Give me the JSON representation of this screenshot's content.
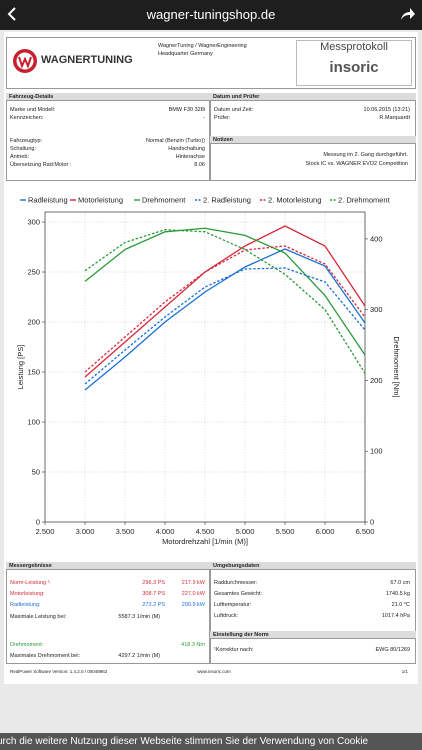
{
  "browser": {
    "url": "wagner-tuningshop.de"
  },
  "header": {
    "logo": "WAGNERTUNING",
    "address": [
      "WagnerTuning / WagnerEngineering",
      "Headquarter Germany"
    ],
    "protocol": "Messprotokoll",
    "brand": "insoric"
  },
  "vehicle": {
    "title": "Fahrzeug-Details",
    "rows": [
      [
        "Marke und Modell:",
        "BMW F30 328i"
      ],
      [
        "Kennzeichen:",
        "-"
      ],
      [
        "Fahrzeugtyp:",
        "Normal (Benzin (Turbo))"
      ],
      [
        "Schaltung:",
        "Handschaltung"
      ],
      [
        "Antrieb:",
        "Hinterachse"
      ],
      [
        "Übersetzung Rad:Motor :",
        "8.06"
      ]
    ]
  },
  "inspection": {
    "title": "Datum und Prüfer",
    "rows": [
      [
        "Datum und Zeit:",
        "10.06.2015 (13:21)"
      ],
      [
        "Prüfer:",
        "R.Marquardt"
      ]
    ]
  },
  "notes": {
    "title": "Notizen",
    "lines": [
      "Messung im 2. Gang durchgeführt.",
      "Stock IC vs. WAGNER EVO2 Competition"
    ]
  },
  "chart_data": {
    "type": "line",
    "x_label": "Motordrehzahl [1/min (M)]",
    "y_label": "Leistung [PS]",
    "y2_label": "Drehmoment [Nm]",
    "x": [
      3000,
      3500,
      4000,
      4500,
      5000,
      5500,
      6000,
      6500
    ],
    "series": [
      {
        "name": "Radleistung",
        "color": "#1a6fd6",
        "dashed": false,
        "values": [
          132,
          165,
          200,
          230,
          255,
          273,
          256,
          199
        ]
      },
      {
        "name": "Motorleistung",
        "color": "#d6283a",
        "dashed": false,
        "values": [
          145,
          180,
          215,
          250,
          276,
          296,
          276,
          216
        ]
      },
      {
        "name": "Drehmoment",
        "color": "#2a9a3a",
        "dashed": false,
        "axis": "y2",
        "values": [
          340,
          385,
          410,
          415,
          405,
          380,
          320,
          236
        ]
      },
      {
        "name": "2. Radleistung",
        "color": "#1a6fd6",
        "dashed": true,
        "values": [
          138,
          172,
          205,
          235,
          253,
          254,
          240,
          192
        ]
      },
      {
        "name": "2. Motorleistung",
        "color": "#d6283a",
        "dashed": true,
        "values": [
          150,
          185,
          220,
          250,
          272,
          276,
          258,
          205
        ]
      },
      {
        "name": "2. Drehmoment",
        "color": "#2a9a3a",
        "dashed": true,
        "axis": "y2",
        "values": [
          355,
          395,
          413,
          410,
          385,
          350,
          300,
          210
        ]
      }
    ],
    "xlim": [
      2500,
      6500
    ],
    "xticks": [
      {
        "value": 2500,
        "label": "2.500"
      },
      {
        "value": 3000,
        "label": "3.000"
      },
      {
        "value": 3500,
        "label": "3.500"
      },
      {
        "value": 4000,
        "label": "4.000"
      },
      {
        "value": 4500,
        "label": "4.500"
      },
      {
        "value": 5000,
        "label": "5.000"
      },
      {
        "value": 5500,
        "label": "5.500"
      },
      {
        "value": 6000,
        "label": "6.000"
      },
      {
        "value": 6500,
        "label": "6.500"
      }
    ],
    "ylim": [
      0,
      310
    ],
    "yticks": [
      0,
      50,
      100,
      150,
      200,
      250,
      300
    ],
    "y2lim": [
      0,
      438
    ],
    "y2ticks": [
      0,
      100,
      200,
      300,
      400
    ],
    "grid": true,
    "legend": "top"
  },
  "results": {
    "title": "Messergebnisse",
    "rows": [
      [
        "Norm-Leistung ¹:",
        "296.3 PS",
        "217.9 kW"
      ],
      [
        "Motorleistung:",
        "308.7 PS",
        "227.0 kW"
      ],
      [
        "Radleistung:",
        "273.2 PS",
        "200.9 kW"
      ],
      [
        "Maximale Leistung bei:",
        "5587.3 1/min (M)"
      ],
      [
        "Drehmoment:",
        "418.3 Nm"
      ],
      [
        "Maximales Drehmoment bei:",
        "4297.2 1/min (M)"
      ]
    ]
  },
  "environment": {
    "title": "Umgebungsdaten",
    "rows": [
      [
        "Raddurchmesser:",
        "67.0 cm"
      ],
      [
        "Gesamtes Gewicht:",
        "1740.5 kg"
      ],
      [
        "Lufttemperatur:",
        "21.0 °C"
      ],
      [
        "Luftdruck:",
        "1017.4 hPa"
      ]
    ]
  },
  "norm": {
    "title": "Einstellung der Norm",
    "rows": [
      [
        "¹Korrektur nach:",
        "EWG 80/1269"
      ]
    ]
  },
  "footer": [
    "RealPower Software Version: 1.4.2.0 / 00048962",
    "www.insoric.com",
    "1/1"
  ],
  "cookie_banner": "urch die weitere Nutzung dieser Webseite stimmen Sie der Verwendung von Cookie"
}
